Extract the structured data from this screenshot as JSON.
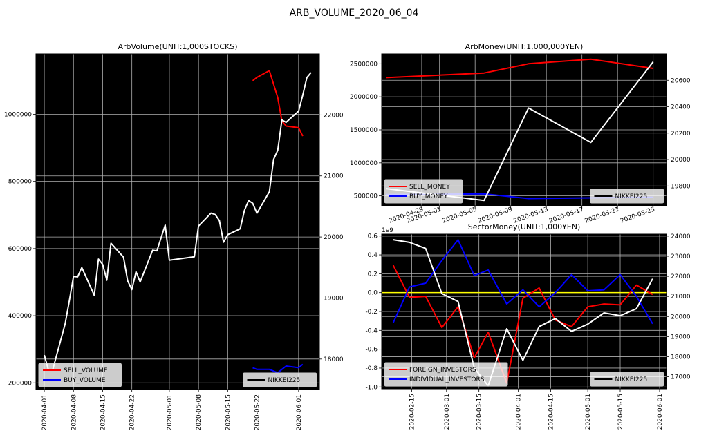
{
  "figure": {
    "title": "ARB_VOLUME_2020_06_04"
  },
  "chart_data": [
    {
      "type": "line",
      "title": "ArbVolume(UNIT:1,000STOCKS)",
      "x_ticks": [
        "2020-04-01",
        "2020-04-08",
        "2020-04-15",
        "2020-04-22",
        "2020-05-01",
        "2020-05-08",
        "2020-05-15",
        "2020-05-22",
        "2020-06-01"
      ],
      "y_ticks": [
        "200000",
        "400000",
        "600000",
        "800000",
        "1000000"
      ],
      "ylim": [
        180000,
        1180000
      ],
      "y2_ticks": [
        "18000",
        "19000",
        "20000",
        "21000",
        "22000"
      ],
      "y2lim": [
        17500,
        23000
      ],
      "x_range": [
        "2020-03-30",
        "2020-06-06"
      ],
      "series": [
        {
          "name": "SELL_VOLUME",
          "color": "#ff0000",
          "axis": "left",
          "x": [
            "2020-05-21",
            "2020-05-22",
            "2020-05-25",
            "2020-05-27",
            "2020-05-28",
            "2020-05-29",
            "2020-06-01",
            "2020-06-02"
          ],
          "y": [
            1100000,
            1110000,
            1130000,
            1050000,
            980000,
            965000,
            960000,
            935000
          ]
        },
        {
          "name": "BUY_VOLUME",
          "color": "#0000ff",
          "axis": "left",
          "x": [
            "2020-05-21",
            "2020-05-22",
            "2020-05-25",
            "2020-05-27",
            "2020-05-28",
            "2020-05-29",
            "2020-06-01",
            "2020-06-02"
          ],
          "y": [
            245000,
            240000,
            240000,
            230000,
            240000,
            250000,
            245000,
            255000
          ]
        },
        {
          "name": "NIKKEI225",
          "color": "#ffffff",
          "axis": "right",
          "x": [
            "2020-04-01",
            "2020-04-02",
            "2020-04-03",
            "2020-04-06",
            "2020-04-07",
            "2020-04-08",
            "2020-04-09",
            "2020-04-10",
            "2020-04-13",
            "2020-04-14",
            "2020-04-15",
            "2020-04-16",
            "2020-04-17",
            "2020-04-20",
            "2020-04-21",
            "2020-04-22",
            "2020-04-23",
            "2020-04-24",
            "2020-04-27",
            "2020-04-28",
            "2020-04-30",
            "2020-05-01",
            "2020-05-07",
            "2020-05-08",
            "2020-05-11",
            "2020-05-12",
            "2020-05-13",
            "2020-05-14",
            "2020-05-15",
            "2020-05-18",
            "2020-05-19",
            "2020-05-20",
            "2020-05-21",
            "2020-05-22",
            "2020-05-25",
            "2020-05-26",
            "2020-05-27",
            "2020-05-28",
            "2020-05-29",
            "2020-06-01",
            "2020-06-02",
            "2020-06-03",
            "2020-06-04"
          ],
          "y": [
            18065,
            17819,
            17820,
            18576,
            18950,
            19353,
            19346,
            19498,
            19043,
            19638,
            19550,
            19291,
            19897,
            19669,
            19281,
            19138,
            19429,
            19262,
            19784,
            19772,
            20194,
            19619,
            19675,
            20179,
            20390,
            20366,
            20267,
            19914,
            20037,
            20134,
            20433,
            20595,
            20552,
            20388,
            20741,
            21271,
            21419,
            21916,
            21878,
            22062,
            22325,
            22613,
            22695
          ]
        }
      ],
      "legend_left": "lower left",
      "legend_right": "lower right"
    },
    {
      "type": "line",
      "title": "ArbMoney(UNIT:1,000,000YEN)",
      "x_ticks": [
        "2020-04-29",
        "2020-05-01",
        "2020-05-05",
        "2020-05-09",
        "2020-05-13",
        "2020-05-17",
        "2020-05-21",
        "2020-05-25"
      ],
      "y_ticks": [
        "500000",
        "1000000",
        "1500000",
        "2000000",
        "2500000"
      ],
      "ylim": [
        350000,
        2650000
      ],
      "y2_ticks": [
        "19800",
        "20000",
        "20200",
        "20400",
        "20600"
      ],
      "y2lim": [
        19650,
        20800
      ],
      "x_range": [
        "2020-04-24.5",
        "2020-05-26.5"
      ],
      "series": [
        {
          "name": "SELL_MONEY",
          "color": "#ff0000",
          "axis": "left",
          "x": [
            "2020-04-25",
            "2020-05-06",
            "2020-05-11",
            "2020-05-18",
            "2020-05-25"
          ],
          "y": [
            2290000,
            2360000,
            2500000,
            2570000,
            2430000
          ]
        },
        {
          "name": "BUY_MONEY",
          "color": "#0000ff",
          "axis": "left",
          "x": [
            "2020-04-25",
            "2020-05-06",
            "2020-05-11",
            "2020-05-18",
            "2020-05-25"
          ],
          "y": [
            520000,
            530000,
            460000,
            470000,
            480000
          ]
        },
        {
          "name": "NIKKEI225",
          "color": "#ffffff",
          "axis": "right",
          "x": [
            "2020-04-25",
            "2020-05-06",
            "2020-05-11",
            "2020-05-18",
            "2020-05-25"
          ],
          "y": [
            19780,
            19690,
            20390,
            20130,
            20740
          ]
        }
      ],
      "legend_left": "lower left",
      "legend_right": "lower right"
    },
    {
      "type": "line",
      "title": "SectorMoney(UNIT:1,000YEN)",
      "y_multiplier": "1e9",
      "x_ticks": [
        "2020-02-15",
        "2020-03-01",
        "2020-03-15",
        "2020-04-01",
        "2020-04-15",
        "2020-05-01",
        "2020-05-15",
        "2020-06-01"
      ],
      "y_ticks": [
        "-1.0",
        "-0.8",
        "-0.6",
        "-0.4",
        "-0.2",
        "0.0",
        "0.2",
        "0.4",
        "0.6"
      ],
      "ylim": [
        -1.02,
        0.62
      ],
      "y2_ticks": [
        "17000",
        "18000",
        "19000",
        "20000",
        "21000",
        "22000",
        "23000",
        "24000"
      ],
      "y2lim": [
        16400,
        24100
      ],
      "x_range": [
        "2020-02-02",
        "2020-06-04"
      ],
      "hline": {
        "y": 0,
        "color": "#ffff00"
      },
      "series": [
        {
          "name": "FOREIGN_INVESTORS",
          "color": "#ff0000",
          "axis": "left",
          "x": [
            "2020-02-07",
            "2020-02-14",
            "2020-02-21",
            "2020-02-28",
            "2020-03-06",
            "2020-03-13",
            "2020-03-19",
            "2020-03-27",
            "2020-04-03",
            "2020-04-10",
            "2020-04-17",
            "2020-04-24",
            "2020-05-01",
            "2020-05-08",
            "2020-05-15",
            "2020-05-22",
            "2020-05-29"
          ],
          "y": [
            0.29,
            -0.05,
            -0.04,
            -0.37,
            -0.15,
            -0.69,
            -0.42,
            -0.96,
            -0.06,
            0.05,
            -0.29,
            -0.36,
            -0.15,
            -0.12,
            -0.13,
            0.08,
            -0.02
          ]
        },
        {
          "name": "INDIVIDUAL_INVESTORS",
          "color": "#0000ff",
          "axis": "left",
          "x": [
            "2020-02-07",
            "2020-02-14",
            "2020-02-21",
            "2020-02-28",
            "2020-03-06",
            "2020-03-13",
            "2020-03-19",
            "2020-03-27",
            "2020-04-03",
            "2020-04-10",
            "2020-04-17",
            "2020-04-24",
            "2020-05-01",
            "2020-05-08",
            "2020-05-15",
            "2020-05-22",
            "2020-05-29"
          ],
          "y": [
            -0.32,
            0.06,
            0.1,
            0.34,
            0.56,
            0.18,
            0.24,
            -0.12,
            0.03,
            -0.15,
            0.0,
            0.19,
            0.02,
            0.03,
            0.19,
            -0.04,
            -0.33
          ]
        },
        {
          "name": "NIKKEI225",
          "color": "#ffffff",
          "axis": "right",
          "x": [
            "2020-02-07",
            "2020-02-14",
            "2020-02-21",
            "2020-02-28",
            "2020-03-06",
            "2020-03-13",
            "2020-03-19",
            "2020-03-27",
            "2020-04-03",
            "2020-04-10",
            "2020-04-17",
            "2020-04-24",
            "2020-05-01",
            "2020-05-08",
            "2020-05-15",
            "2020-05-22",
            "2020-05-29"
          ],
          "y": [
            23820,
            23690,
            23390,
            21140,
            20750,
            17430,
            16550,
            19390,
            17820,
            19500,
            19900,
            19260,
            19620,
            20180,
            20040,
            20390,
            21880
          ]
        }
      ],
      "legend_left": "lower left",
      "legend_right": "lower right"
    }
  ]
}
